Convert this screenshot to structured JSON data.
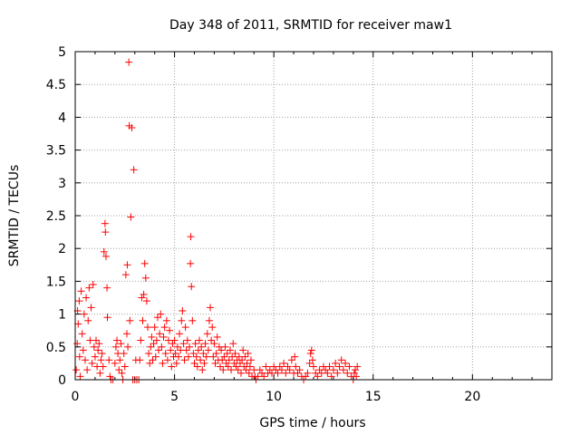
{
  "chart_data": {
    "type": "scatter",
    "title": "Day 348 of 2011, SRMTID for receiver maw1",
    "xlabel": "GPS time / hours",
    "ylabel": "SRMTID / TECUs",
    "xlim": [
      0,
      24
    ],
    "ylim": [
      0,
      5
    ],
    "grid": true,
    "marker": "+",
    "color": "#ff0000",
    "x_ticks": [
      0,
      5,
      10,
      15,
      20
    ],
    "x_tick_labels": [
      "0",
      "5",
      "10",
      "15",
      "20"
    ],
    "y_ticks": [
      0,
      0.5,
      1,
      1.5,
      2,
      2.5,
      3,
      3.5,
      4,
      4.5,
      5
    ],
    "y_tick_labels": [
      "0",
      "0.5",
      "1",
      "1.5",
      "2",
      "2.5",
      "3",
      "3.5",
      "4",
      "4.5",
      "5"
    ],
    "series": [
      {
        "name": "SRMTID",
        "points": [
          [
            0.05,
            0.15
          ],
          [
            0.1,
            0.55
          ],
          [
            0.12,
            1.05
          ],
          [
            0.15,
            0.85
          ],
          [
            0.2,
            1.2
          ],
          [
            0.22,
            0.35
          ],
          [
            0.25,
            0.05
          ],
          [
            0.3,
            1.35
          ],
          [
            0.35,
            0.7
          ],
          [
            0.4,
            0.45
          ],
          [
            0.45,
            1.0
          ],
          [
            0.5,
            0.3
          ],
          [
            0.55,
            1.25
          ],
          [
            0.6,
            0.15
          ],
          [
            0.65,
            0.9
          ],
          [
            0.7,
            1.4
          ],
          [
            0.75,
            0.6
          ],
          [
            0.8,
            1.1
          ],
          [
            0.85,
            0.25
          ],
          [
            0.9,
            1.45
          ],
          [
            0.95,
            0.5
          ],
          [
            1.0,
            0.35
          ],
          [
            1.05,
            0.6
          ],
          [
            1.1,
            0.2
          ],
          [
            1.15,
            0.45
          ],
          [
            1.2,
            0.55
          ],
          [
            1.25,
            0.1
          ],
          [
            1.3,
            0.3
          ],
          [
            1.35,
            0.4
          ],
          [
            1.4,
            0.2
          ],
          [
            1.45,
            1.95
          ],
          [
            1.5,
            2.38
          ],
          [
            1.52,
            2.25
          ],
          [
            1.55,
            1.88
          ],
          [
            1.6,
            1.4
          ],
          [
            1.62,
            0.95
          ],
          [
            1.7,
            0.3
          ],
          [
            1.75,
            0.05
          ],
          [
            1.8,
            0.0
          ],
          [
            1.9,
            0.0
          ],
          [
            2.0,
            0.25
          ],
          [
            2.05,
            0.5
          ],
          [
            2.1,
            0.6
          ],
          [
            2.15,
            0.4
          ],
          [
            2.2,
            0.15
          ],
          [
            2.25,
            0.3
          ],
          [
            2.3,
            0.55
          ],
          [
            2.35,
            0.1
          ],
          [
            2.4,
            0.0
          ],
          [
            2.45,
            0.4
          ],
          [
            2.5,
            0.2
          ],
          [
            2.55,
            1.6
          ],
          [
            2.6,
            0.7
          ],
          [
            2.62,
            1.75
          ],
          [
            2.65,
            0.5
          ],
          [
            2.7,
            4.84
          ],
          [
            2.72,
            3.87
          ],
          [
            2.75,
            0.9
          ],
          [
            2.8,
            2.48
          ],
          [
            2.85,
            3.84
          ],
          [
            2.9,
            0.0
          ],
          [
            2.95,
            3.2
          ],
          [
            3.0,
            0.0
          ],
          [
            3.05,
            0.3
          ],
          [
            3.1,
            0.0
          ],
          [
            3.2,
            0.0
          ],
          [
            3.25,
            0.3
          ],
          [
            3.3,
            0.6
          ],
          [
            3.35,
            1.25
          ],
          [
            3.4,
            0.9
          ],
          [
            3.45,
            1.3
          ],
          [
            3.5,
            1.77
          ],
          [
            3.55,
            1.55
          ],
          [
            3.6,
            1.2
          ],
          [
            3.65,
            0.8
          ],
          [
            3.7,
            0.4
          ],
          [
            3.75,
            0.25
          ],
          [
            3.8,
            0.5
          ],
          [
            3.85,
            0.65
          ],
          [
            3.9,
            0.3
          ],
          [
            3.95,
            0.55
          ],
          [
            4.0,
            0.8
          ],
          [
            4.05,
            0.35
          ],
          [
            4.1,
            0.6
          ],
          [
            4.15,
            0.95
          ],
          [
            4.2,
            0.45
          ],
          [
            4.25,
            0.7
          ],
          [
            4.3,
            1.0
          ],
          [
            4.35,
            0.5
          ],
          [
            4.4,
            0.25
          ],
          [
            4.45,
            0.65
          ],
          [
            4.5,
            0.8
          ],
          [
            4.55,
            0.4
          ],
          [
            4.6,
            0.9
          ],
          [
            4.65,
            0.3
          ],
          [
            4.7,
            0.6
          ],
          [
            4.75,
            0.75
          ],
          [
            4.8,
            0.45
          ],
          [
            4.85,
            0.2
          ],
          [
            4.9,
            0.55
          ],
          [
            4.95,
            0.35
          ],
          [
            5.0,
            0.6
          ],
          [
            5.05,
            0.4
          ],
          [
            5.1,
            0.25
          ],
          [
            5.15,
            0.5
          ],
          [
            5.2,
            0.35
          ],
          [
            5.25,
            0.7
          ],
          [
            5.3,
            0.45
          ],
          [
            5.35,
            0.9
          ],
          [
            5.4,
            1.05
          ],
          [
            5.45,
            0.55
          ],
          [
            5.5,
            0.3
          ],
          [
            5.55,
            0.8
          ],
          [
            5.6,
            0.45
          ],
          [
            5.65,
            0.6
          ],
          [
            5.7,
            0.35
          ],
          [
            5.75,
            0.5
          ],
          [
            5.8,
            1.77
          ],
          [
            5.82,
            2.18
          ],
          [
            5.85,
            1.42
          ],
          [
            5.9,
            0.9
          ],
          [
            5.95,
            0.4
          ],
          [
            6.0,
            0.25
          ],
          [
            6.05,
            0.55
          ],
          [
            6.1,
            0.35
          ],
          [
            6.15,
            0.2
          ],
          [
            6.2,
            0.45
          ],
          [
            6.25,
            0.6
          ],
          [
            6.3,
            0.3
          ],
          [
            6.35,
            0.5
          ],
          [
            6.4,
            0.15
          ],
          [
            6.45,
            0.4
          ],
          [
            6.5,
            0.25
          ],
          [
            6.55,
            0.55
          ],
          [
            6.6,
            0.35
          ],
          [
            6.65,
            0.7
          ],
          [
            6.7,
            0.45
          ],
          [
            6.75,
            0.9
          ],
          [
            6.8,
            1.1
          ],
          [
            6.85,
            0.6
          ],
          [
            6.9,
            0.8
          ],
          [
            6.95,
            0.35
          ],
          [
            7.0,
            0.55
          ],
          [
            7.05,
            0.25
          ],
          [
            7.1,
            0.4
          ],
          [
            7.15,
            0.65
          ],
          [
            7.2,
            0.3
          ],
          [
            7.25,
            0.5
          ],
          [
            7.3,
            0.2
          ],
          [
            7.35,
            0.45
          ],
          [
            7.4,
            0.3
          ],
          [
            7.45,
            0.15
          ],
          [
            7.5,
            0.35
          ],
          [
            7.55,
            0.5
          ],
          [
            7.6,
            0.25
          ],
          [
            7.65,
            0.4
          ],
          [
            7.7,
            0.2
          ],
          [
            7.75,
            0.3
          ],
          [
            7.8,
            0.45
          ],
          [
            7.85,
            0.15
          ],
          [
            7.9,
            0.35
          ],
          [
            7.95,
            0.55
          ],
          [
            8.0,
            0.25
          ],
          [
            8.05,
            0.4
          ],
          [
            8.1,
            0.2
          ],
          [
            8.15,
            0.3
          ],
          [
            8.2,
            0.15
          ],
          [
            8.25,
            0.35
          ],
          [
            8.3,
            0.25
          ],
          [
            8.35,
            0.1
          ],
          [
            8.4,
            0.3
          ],
          [
            8.45,
            0.45
          ],
          [
            8.5,
            0.2
          ],
          [
            8.55,
            0.35
          ],
          [
            8.6,
            0.15
          ],
          [
            8.65,
            0.25
          ],
          [
            8.7,
            0.4
          ],
          [
            8.75,
            0.1
          ],
          [
            8.8,
            0.2
          ],
          [
            8.85,
            0.3
          ],
          [
            8.9,
            0.05
          ],
          [
            9.0,
            0.15
          ],
          [
            9.05,
            0.05
          ],
          [
            9.1,
            0.0
          ],
          [
            9.2,
            0.05
          ],
          [
            9.3,
            0.15
          ],
          [
            9.4,
            0.1
          ],
          [
            9.5,
            0.05
          ],
          [
            9.6,
            0.2
          ],
          [
            9.7,
            0.1
          ],
          [
            9.8,
            0.15
          ],
          [
            9.9,
            0.1
          ],
          [
            10.0,
            0.2
          ],
          [
            10.1,
            0.15
          ],
          [
            10.2,
            0.1
          ],
          [
            10.3,
            0.2
          ],
          [
            10.4,
            0.15
          ],
          [
            10.5,
            0.25
          ],
          [
            10.6,
            0.1
          ],
          [
            10.7,
            0.2
          ],
          [
            10.8,
            0.15
          ],
          [
            10.9,
            0.3
          ],
          [
            11.0,
            0.1
          ],
          [
            11.05,
            0.35
          ],
          [
            11.1,
            0.2
          ],
          [
            11.2,
            0.1
          ],
          [
            11.3,
            0.15
          ],
          [
            11.4,
            0.05
          ],
          [
            11.5,
            0.0
          ],
          [
            11.6,
            0.05
          ],
          [
            11.7,
            0.1
          ],
          [
            11.8,
            0.25
          ],
          [
            11.85,
            0.4
          ],
          [
            11.9,
            0.45
          ],
          [
            11.95,
            0.3
          ],
          [
            12.0,
            0.2
          ],
          [
            12.1,
            0.1
          ],
          [
            12.2,
            0.05
          ],
          [
            12.3,
            0.15
          ],
          [
            12.4,
            0.1
          ],
          [
            12.5,
            0.2
          ],
          [
            12.6,
            0.15
          ],
          [
            12.7,
            0.1
          ],
          [
            12.8,
            0.2
          ],
          [
            12.9,
            0.05
          ],
          [
            13.0,
            0.15
          ],
          [
            13.1,
            0.25
          ],
          [
            13.2,
            0.1
          ],
          [
            13.3,
            0.2
          ],
          [
            13.4,
            0.3
          ],
          [
            13.5,
            0.15
          ],
          [
            13.6,
            0.25
          ],
          [
            13.7,
            0.1
          ],
          [
            13.8,
            0.2
          ],
          [
            13.9,
            0.05
          ],
          [
            14.0,
            0.0
          ],
          [
            14.05,
            0.1
          ],
          [
            14.1,
            0.15
          ],
          [
            14.15,
            0.05
          ],
          [
            14.2,
            0.2
          ]
        ]
      }
    ]
  }
}
